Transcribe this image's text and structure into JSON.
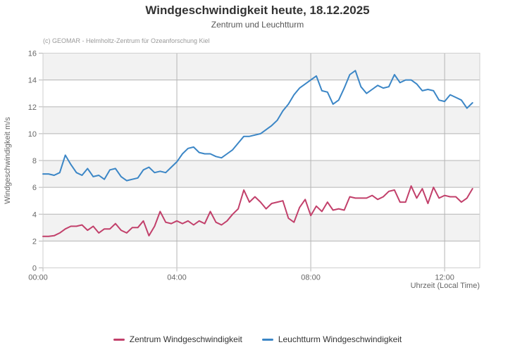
{
  "header": {
    "title": "Windgeschwindigkeit heute, 18.12.2025",
    "subtitle": "Zentrum und Leuchtturm",
    "credits": "(c) GEOMAR - Helmholtz-Zentrum für Ozeanforschung Kiel"
  },
  "colors": {
    "zentrum_line": "#c2406b",
    "leuchtturm_line": "#3b86c6",
    "band_fill": "#f2f2f2",
    "grid_line": "#b5b5b5",
    "plot_border": "#cfcfcf",
    "tick_text": "#666666"
  },
  "legend": {
    "items": [
      {
        "label": "Zentrum Windgeschwindigkeit",
        "color": "#c2406b"
      },
      {
        "label": "Leuchtturm Windgeschwindigkeit",
        "color": "#3b86c6"
      }
    ]
  },
  "chart_data": {
    "type": "line",
    "title": "Windgeschwindigkeit heute, 18.12.2025",
    "subtitle": "Zentrum und Leuchtturm",
    "xlabel": "Uhrzeit (Local Time)",
    "ylabel": "Windgeschwindigkeit m/s",
    "ylim": [
      0,
      16
    ],
    "yticks": [
      0,
      2,
      4,
      6,
      8,
      10,
      12,
      14,
      16
    ],
    "xlim_minutes": [
      0,
      783
    ],
    "xticks": [
      {
        "minutes": 0,
        "label": "00:00"
      },
      {
        "minutes": 240,
        "label": "04:00"
      },
      {
        "minutes": 480,
        "label": "08:00"
      },
      {
        "minutes": 720,
        "label": "12:00"
      }
    ],
    "grid": true,
    "alternating_bands": true,
    "legend_position": "bottom",
    "x_minutes": [
      0,
      10,
      20,
      30,
      40,
      50,
      60,
      70,
      80,
      90,
      100,
      110,
      120,
      130,
      140,
      150,
      160,
      170,
      180,
      190,
      200,
      210,
      220,
      230,
      240,
      250,
      260,
      270,
      280,
      290,
      300,
      310,
      320,
      330,
      340,
      350,
      360,
      370,
      380,
      390,
      400,
      410,
      420,
      430,
      440,
      450,
      460,
      470,
      480,
      490,
      500,
      510,
      520,
      530,
      540,
      550,
      560,
      570,
      580,
      590,
      600,
      610,
      620,
      630,
      640,
      650,
      660,
      670,
      680,
      690,
      700,
      710,
      720,
      730,
      740,
      750,
      760,
      770
    ],
    "series": [
      {
        "name": "Zentrum Windgeschwindigkeit",
        "color": "#c2406b",
        "values": [
          2.35,
          2.35,
          2.4,
          2.6,
          2.9,
          3.1,
          3.1,
          3.2,
          2.8,
          3.1,
          2.6,
          2.9,
          2.9,
          3.3,
          2.8,
          2.6,
          3.0,
          3.0,
          3.5,
          2.4,
          3.1,
          4.2,
          3.4,
          3.3,
          3.5,
          3.3,
          3.5,
          3.2,
          3.5,
          3.3,
          4.2,
          3.4,
          3.2,
          3.5,
          4.0,
          4.4,
          5.8,
          4.9,
          5.3,
          4.9,
          4.4,
          4.8,
          4.9,
          5.0,
          3.7,
          3.4,
          4.5,
          5.1,
          3.9,
          4.6,
          4.2,
          4.9,
          4.3,
          4.4,
          4.3,
          5.3,
          5.2,
          5.2,
          5.2,
          5.4,
          5.1,
          5.3,
          5.7,
          5.8,
          4.9,
          4.9,
          6.1,
          5.2,
          5.9,
          4.8,
          6.0,
          5.2,
          5.4,
          5.3,
          5.3,
          4.9,
          5.2,
          5.9
        ]
      },
      {
        "name": "Leuchtturm Windgeschwindigkeit",
        "color": "#3b86c6",
        "values": [
          7.0,
          7.0,
          6.9,
          7.1,
          8.4,
          7.7,
          7.1,
          6.9,
          7.4,
          6.8,
          6.9,
          6.6,
          7.3,
          7.4,
          6.8,
          6.5,
          6.6,
          6.7,
          7.3,
          7.5,
          7.1,
          7.2,
          7.1,
          7.5,
          7.9,
          8.5,
          8.9,
          9.0,
          8.6,
          8.5,
          8.5,
          8.3,
          8.2,
          8.5,
          8.8,
          9.3,
          9.8,
          9.8,
          9.9,
          10.0,
          10.3,
          10.6,
          11.0,
          11.7,
          12.2,
          12.9,
          13.4,
          13.7,
          14.0,
          14.3,
          13.2,
          13.1,
          12.2,
          12.5,
          13.4,
          14.4,
          14.7,
          13.5,
          13.0,
          13.3,
          13.6,
          13.4,
          13.5,
          14.4,
          13.8,
          14.0,
          14.0,
          13.7,
          13.2,
          13.3,
          13.2,
          12.5,
          12.4,
          12.9,
          12.7,
          12.5,
          11.9,
          12.3
        ]
      }
    ]
  }
}
